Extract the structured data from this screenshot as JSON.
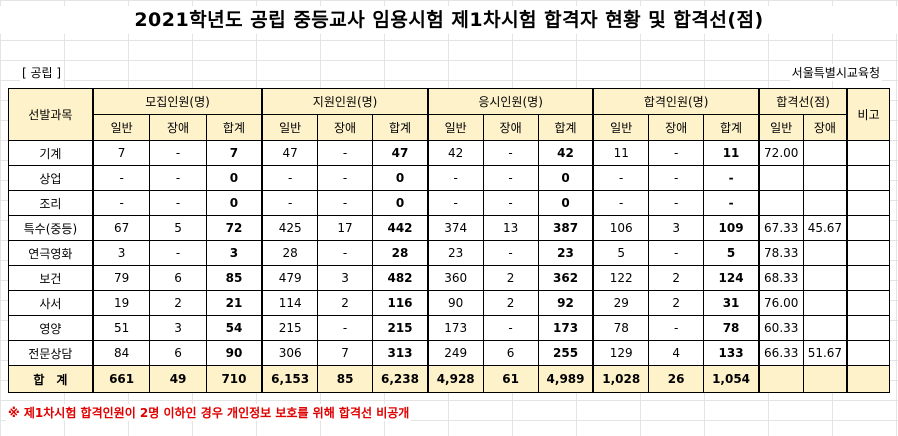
{
  "title": "2021학년도 공립 중등교사 임용시험 제1차시험 합격자 현황 및 합격선(점)",
  "subhead_left": "[ 공립 ]",
  "subhead_right": "서울특별시교육청",
  "headers": {
    "subject": "선발과목",
    "recruit": "모집인원(명)",
    "apply": "지원인원(명)",
    "exam": "응시인원(명)",
    "pass": "합격인원(명)",
    "cutoff": "합격선(점)",
    "note": "비고",
    "general": "일반",
    "disabled": "장애",
    "sum": "합계"
  },
  "rows": [
    {
      "subject": "기계",
      "r_g": "7",
      "r_d": "-",
      "r_s": "7",
      "a_g": "47",
      "a_d": "-",
      "a_s": "47",
      "e_g": "42",
      "e_d": "-",
      "e_s": "42",
      "p_g": "11",
      "p_d": "-",
      "p_s": "11",
      "c_g": "72.00",
      "c_d": "",
      "note": ""
    },
    {
      "subject": "상업",
      "r_g": "-",
      "r_d": "-",
      "r_s": "0",
      "a_g": "-",
      "a_d": "-",
      "a_s": "0",
      "e_g": "-",
      "e_d": "-",
      "e_s": "0",
      "p_g": "-",
      "p_d": "-",
      "p_s": "-",
      "c_g": "",
      "c_d": "",
      "note": ""
    },
    {
      "subject": "조리",
      "r_g": "-",
      "r_d": "-",
      "r_s": "0",
      "a_g": "-",
      "a_d": "-",
      "a_s": "0",
      "e_g": "-",
      "e_d": "-",
      "e_s": "0",
      "p_g": "-",
      "p_d": "-",
      "p_s": "-",
      "c_g": "",
      "c_d": "",
      "note": ""
    },
    {
      "subject": "특수(중등)",
      "r_g": "67",
      "r_d": "5",
      "r_s": "72",
      "a_g": "425",
      "a_d": "17",
      "a_s": "442",
      "e_g": "374",
      "e_d": "13",
      "e_s": "387",
      "p_g": "106",
      "p_d": "3",
      "p_s": "109",
      "c_g": "67.33",
      "c_d": "45.67",
      "note": ""
    },
    {
      "subject": "연극영화",
      "r_g": "3",
      "r_d": "-",
      "r_s": "3",
      "a_g": "28",
      "a_d": "-",
      "a_s": "28",
      "e_g": "23",
      "e_d": "-",
      "e_s": "23",
      "p_g": "5",
      "p_d": "-",
      "p_s": "5",
      "c_g": "78.33",
      "c_d": "",
      "note": ""
    },
    {
      "subject": "보건",
      "r_g": "79",
      "r_d": "6",
      "r_s": "85",
      "a_g": "479",
      "a_d": "3",
      "a_s": "482",
      "e_g": "360",
      "e_d": "2",
      "e_s": "362",
      "p_g": "122",
      "p_d": "2",
      "p_s": "124",
      "c_g": "68.33",
      "c_d": "",
      "note": ""
    },
    {
      "subject": "사서",
      "r_g": "19",
      "r_d": "2",
      "r_s": "21",
      "a_g": "114",
      "a_d": "2",
      "a_s": "116",
      "e_g": "90",
      "e_d": "2",
      "e_s": "92",
      "p_g": "29",
      "p_d": "2",
      "p_s": "31",
      "c_g": "76.00",
      "c_d": "",
      "note": ""
    },
    {
      "subject": "영양",
      "r_g": "51",
      "r_d": "3",
      "r_s": "54",
      "a_g": "215",
      "a_d": "-",
      "a_s": "215",
      "e_g": "173",
      "e_d": "-",
      "e_s": "173",
      "p_g": "78",
      "p_d": "-",
      "p_s": "78",
      "c_g": "60.33",
      "c_d": "",
      "note": ""
    },
    {
      "subject": "전문상담",
      "r_g": "84",
      "r_d": "6",
      "r_s": "90",
      "a_g": "306",
      "a_d": "7",
      "a_s": "313",
      "e_g": "249",
      "e_d": "6",
      "e_s": "255",
      "p_g": "129",
      "p_d": "4",
      "p_s": "133",
      "c_g": "66.33",
      "c_d": "51.67",
      "note": ""
    }
  ],
  "total": {
    "subject": "합　계",
    "r_g": "661",
    "r_d": "49",
    "r_s": "710",
    "a_g": "6,153",
    "a_d": "85",
    "a_s": "6,238",
    "e_g": "4,928",
    "e_d": "61",
    "e_s": "4,989",
    "p_g": "1,028",
    "p_d": "26",
    "p_s": "1,054",
    "c_g": "",
    "c_d": "",
    "note": ""
  },
  "footnote": "※ 제1차시험 합격인원이 2명 이하인 경우 개인정보 보호를 위해 합격선 비공개",
  "colors": {
    "header_bg": "#fef2cb",
    "footnote": "#e00000"
  }
}
